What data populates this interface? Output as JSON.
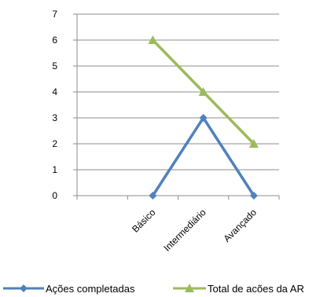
{
  "chart_data": {
    "type": "line",
    "categories": [
      "Básico",
      "Intermediário",
      "Avançado"
    ],
    "series": [
      {
        "name": "Ações completadas",
        "values": [
          0,
          3,
          0
        ],
        "color": "#4F81BD",
        "marker": "diamond"
      },
      {
        "name": "Total de acões da AR",
        "values": [
          6,
          4,
          2
        ],
        "color": "#9BBB59",
        "marker": "triangle"
      }
    ],
    "ylim": [
      0,
      7
    ],
    "yticks": [
      0,
      1,
      2,
      3,
      4,
      5,
      6,
      7
    ],
    "grid": true,
    "legend": "bottom",
    "title": "",
    "xlabel": "",
    "ylabel": ""
  }
}
